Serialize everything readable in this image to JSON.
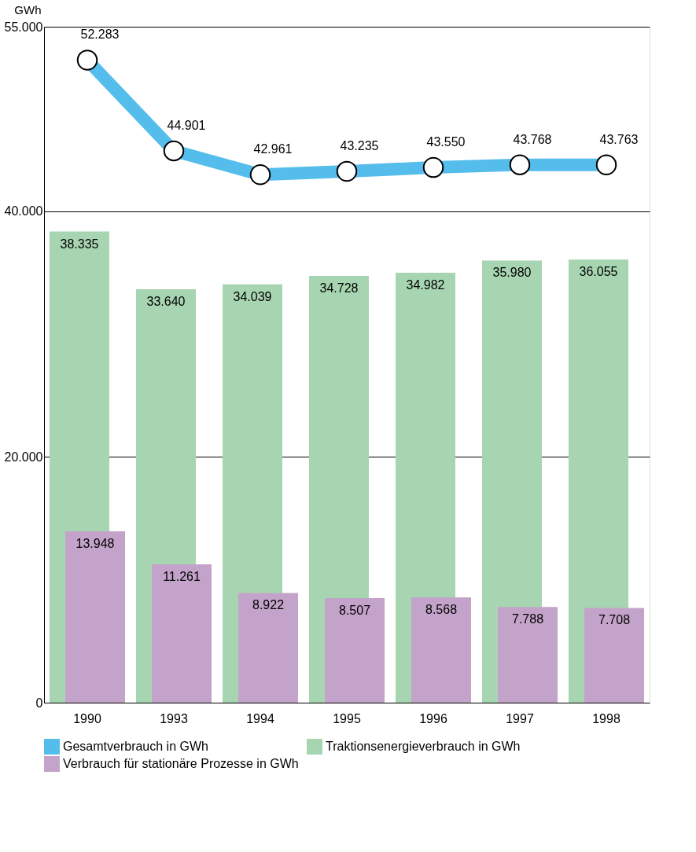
{
  "chart_data": {
    "type": "bar",
    "ylabel": "GWh",
    "categories": [
      "1990",
      "1993",
      "1994",
      "1995",
      "1996",
      "1997",
      "1998"
    ],
    "series": [
      {
        "name": "Gesamtverbrauch in GWh",
        "type": "line",
        "color": "#55bdec",
        "values": [
          52283,
          44901,
          42961,
          43235,
          43550,
          43768,
          43763
        ],
        "value_labels": [
          "52.283",
          "44.901",
          "42.961",
          "43.235",
          "43.550",
          "43.768",
          "43.763"
        ]
      },
      {
        "name": "Traktionsenergieverbrauch in GWh",
        "color": "#a8d5b1",
        "values": [
          38335,
          33640,
          34039,
          34728,
          34982,
          35980,
          36055
        ],
        "value_labels": [
          "38.335",
          "33.640",
          "34.039",
          "34.728",
          "34.982",
          "35.980",
          "36.055"
        ]
      },
      {
        "name": "Verbrauch für stationäre Prozesse in GWh",
        "color": "#c3a3c9",
        "values": [
          13948,
          11261,
          8922,
          8507,
          8568,
          7788,
          7708
        ],
        "value_labels": [
          "13.948",
          "11.261",
          "8.922",
          "8.507",
          "8.568",
          "7.788",
          "7.708"
        ]
      }
    ],
    "ylim": [
      0,
      55000
    ],
    "yticks": [
      0,
      {
        "value": 20000,
        "label": "20.000"
      },
      {
        "value": 40000,
        "label": "40.000"
      },
      {
        "value": 55000,
        "label": "55.000"
      }
    ],
    "grid": "y",
    "marker": "circle",
    "legend": "bottom"
  }
}
